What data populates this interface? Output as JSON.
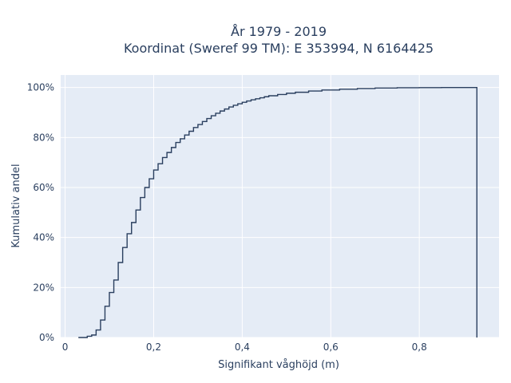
{
  "chart_data": {
    "type": "line",
    "title_lines": [
      "År 1979 - 2019",
      "Koordinat (Sweref 99 TM): E 353994, N 6164425"
    ],
    "xlabel": "Signifikant våghöjd (m)",
    "ylabel": "Kumulativ andel",
    "xlim": [
      -0.01,
      0.98
    ],
    "ylim": [
      0,
      1.05
    ],
    "x_ticks": [
      0,
      0.2,
      0.4,
      0.6,
      0.8
    ],
    "x_tick_labels": [
      "0",
      "0,2",
      "0,4",
      "0,6",
      "0,8"
    ],
    "y_ticks": [
      0,
      0.2,
      0.4,
      0.6,
      0.8,
      1.0
    ],
    "y_tick_labels": [
      "0%",
      "20%",
      "40%",
      "60%",
      "80%",
      "100%"
    ],
    "grid": true,
    "line_shape": "step",
    "line_color": "#2a3f5f",
    "plot_bg": "#e5ecf6",
    "series": [
      {
        "x": [
          0.03,
          0.05,
          0.06,
          0.07,
          0.08,
          0.09,
          0.1,
          0.11,
          0.12,
          0.13,
          0.14,
          0.15,
          0.16,
          0.17,
          0.18,
          0.19,
          0.2,
          0.21,
          0.22,
          0.23,
          0.24,
          0.25,
          0.26,
          0.27,
          0.28,
          0.29,
          0.3,
          0.31,
          0.32,
          0.33,
          0.34,
          0.35,
          0.36,
          0.37,
          0.38,
          0.39,
          0.4,
          0.41,
          0.42,
          0.43,
          0.44,
          0.45,
          0.46,
          0.48,
          0.5,
          0.52,
          0.55,
          0.58,
          0.62,
          0.66,
          0.7,
          0.75,
          0.8,
          0.85,
          0.9,
          0.93
        ],
        "y": [
          0.0,
          0.005,
          0.01,
          0.03,
          0.07,
          0.125,
          0.18,
          0.23,
          0.3,
          0.36,
          0.415,
          0.46,
          0.51,
          0.56,
          0.6,
          0.635,
          0.67,
          0.695,
          0.72,
          0.74,
          0.76,
          0.78,
          0.795,
          0.81,
          0.825,
          0.84,
          0.852,
          0.864,
          0.876,
          0.887,
          0.897,
          0.906,
          0.914,
          0.922,
          0.929,
          0.935,
          0.941,
          0.946,
          0.951,
          0.955,
          0.959,
          0.963,
          0.967,
          0.972,
          0.977,
          0.981,
          0.986,
          0.99,
          0.993,
          0.996,
          0.998,
          0.999,
          0.9995,
          0.9998,
          1.0,
          0.0
        ]
      }
    ]
  }
}
